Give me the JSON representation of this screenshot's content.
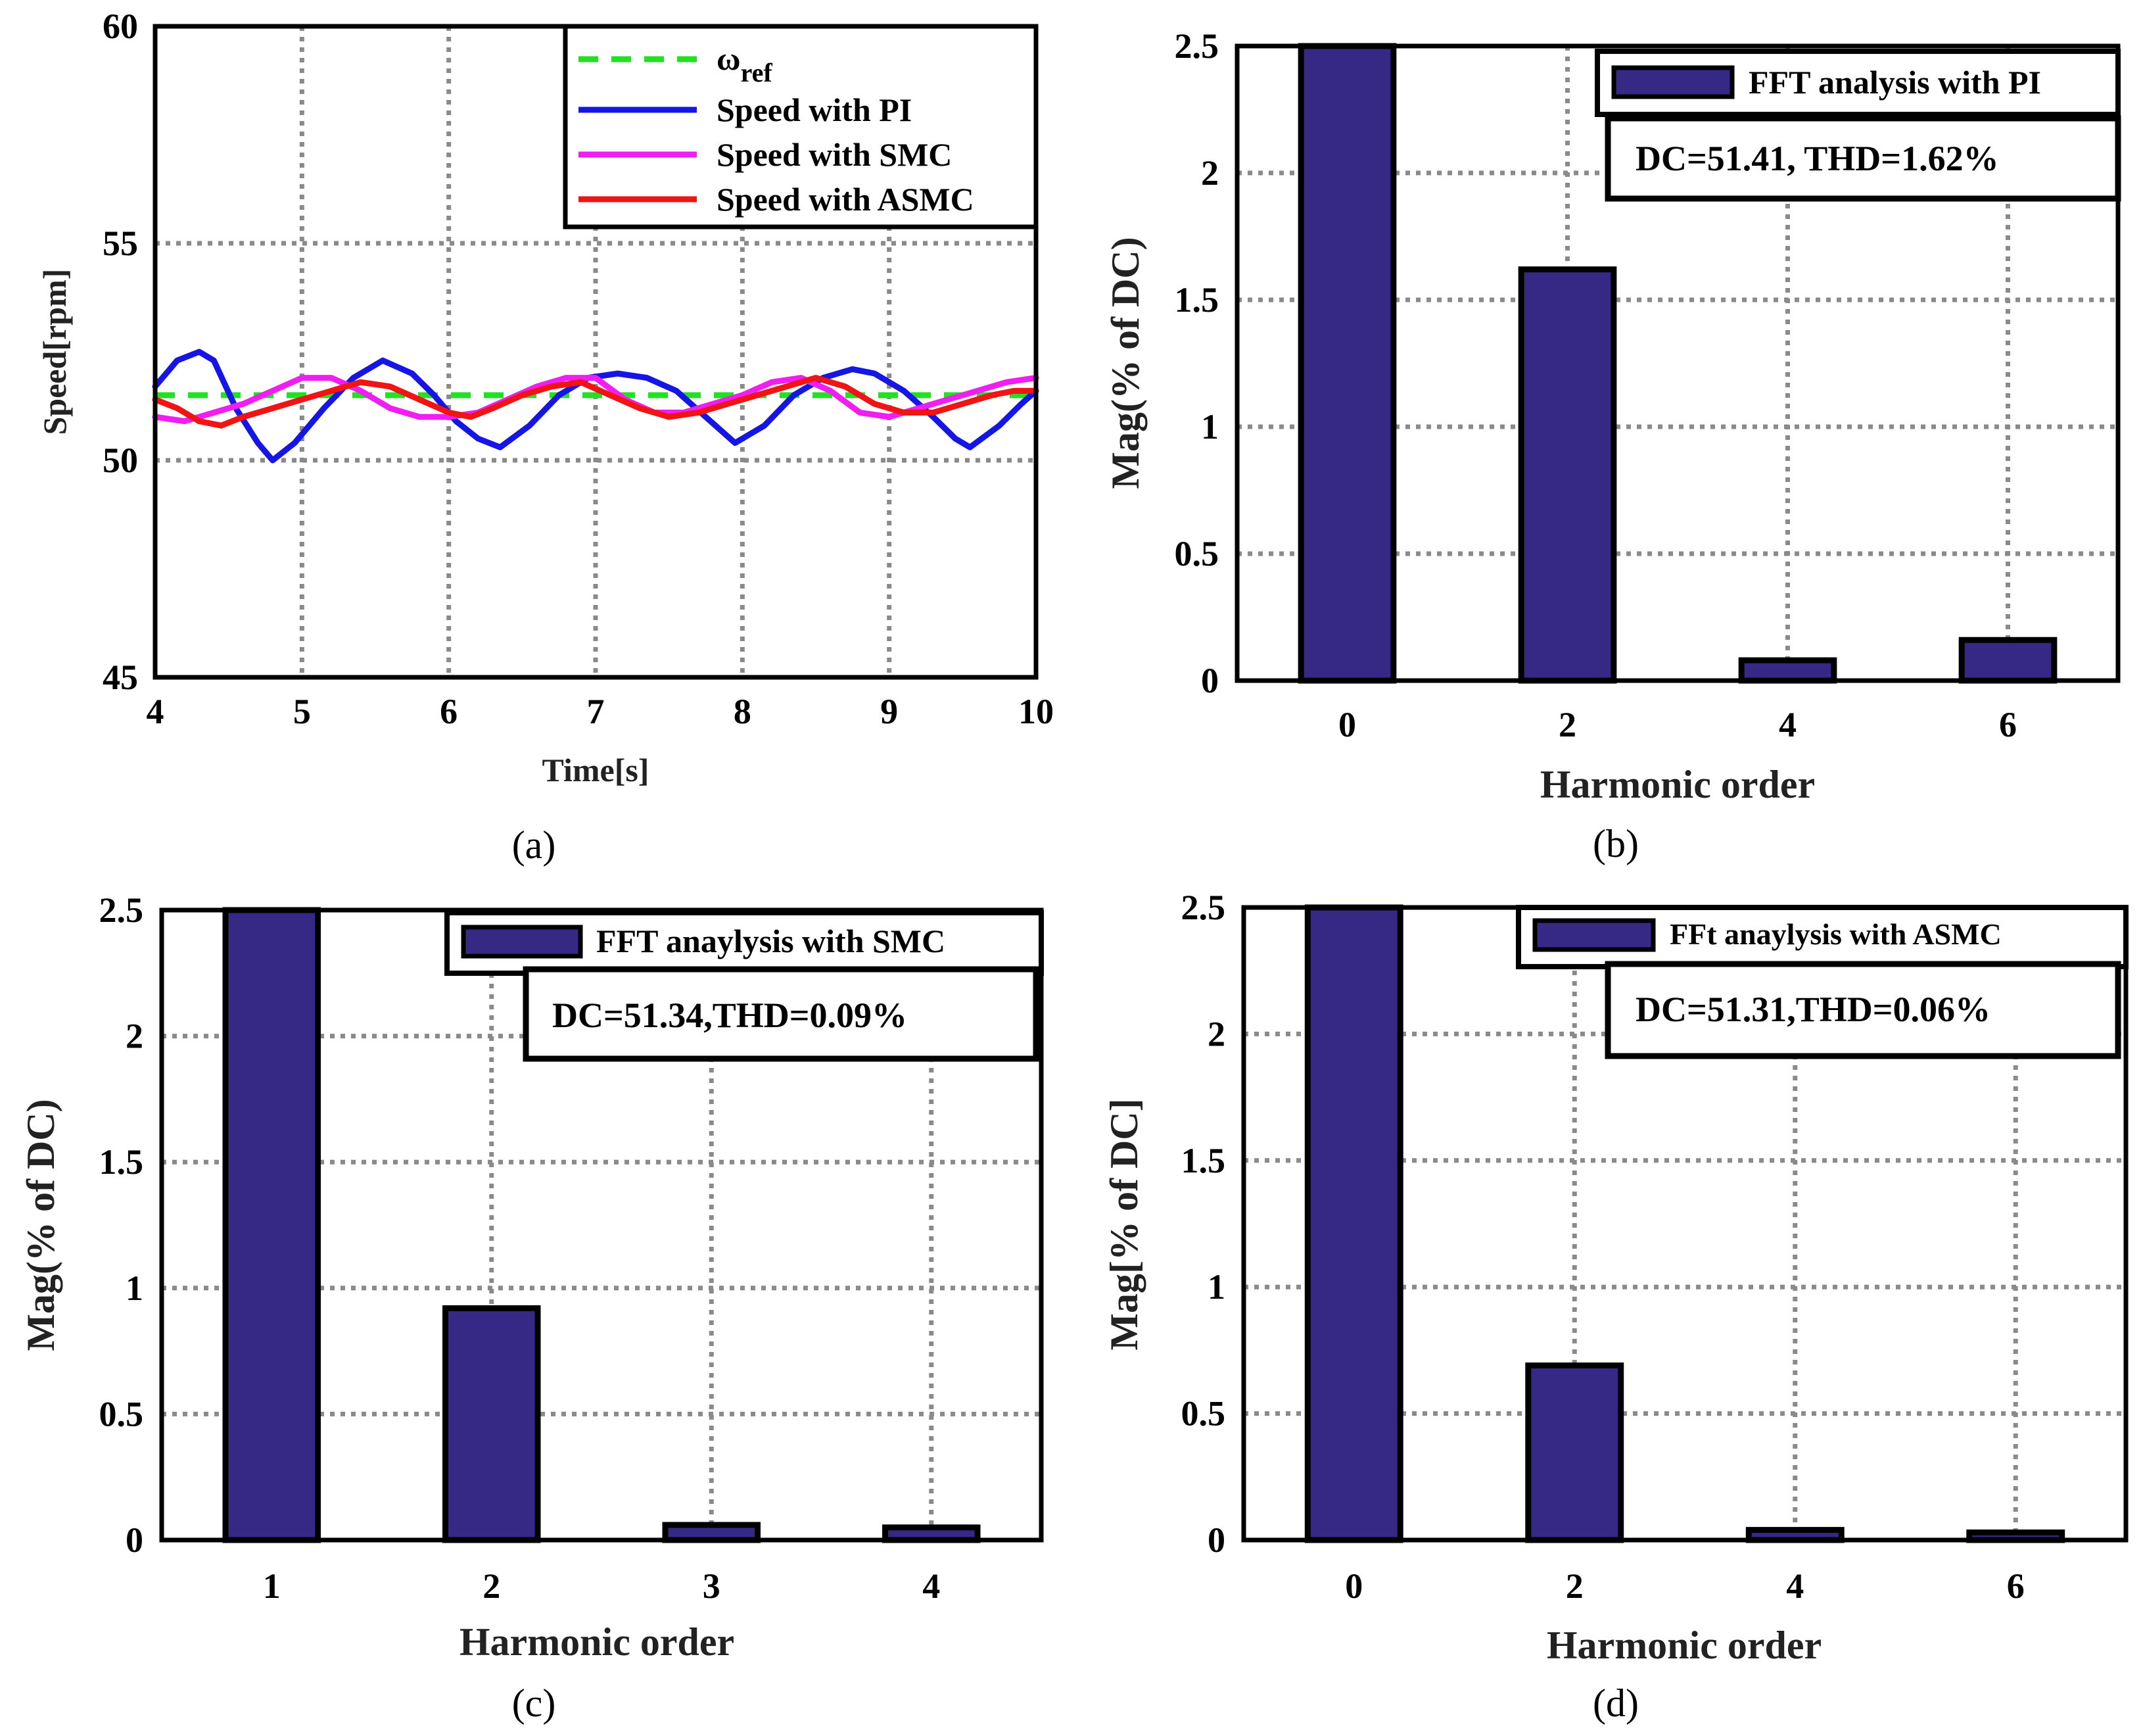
{
  "chart_data": [
    {
      "id": "a",
      "type": "line",
      "caption": "(a)",
      "xlabel": "Time[s]",
      "ylabel": "Speed[rpm]",
      "xlim": [
        4,
        10
      ],
      "ylim": [
        45,
        60
      ],
      "xticks": [
        "4",
        "5",
        "6",
        "7",
        "8",
        "9",
        "10"
      ],
      "yticks": [
        "45",
        "50",
        "55",
        "60"
      ],
      "grid": true,
      "legend_position": "top-right",
      "series": [
        {
          "name": "ω_ref",
          "name_main": "ω",
          "name_sub": "ref",
          "color": "#22e022",
          "style": "dashed",
          "x": [
            4,
            10
          ],
          "y": [
            51.5,
            51.5
          ]
        },
        {
          "name": "Speed with PI",
          "color": "#1515e6",
          "style": "solid",
          "x": [
            4.0,
            4.15,
            4.3,
            4.4,
            4.55,
            4.7,
            4.8,
            4.95,
            5.15,
            5.35,
            5.55,
            5.75,
            5.9,
            6.05,
            6.2,
            6.35,
            6.55,
            6.75,
            6.95,
            7.15,
            7.35,
            7.55,
            7.75,
            7.95,
            8.15,
            8.35,
            8.55,
            8.75,
            8.9,
            9.1,
            9.3,
            9.45,
            9.55,
            9.75,
            9.9,
            10.0
          ],
          "y": [
            51.7,
            52.3,
            52.5,
            52.3,
            51.2,
            50.4,
            50.0,
            50.4,
            51.2,
            51.9,
            52.3,
            52.0,
            51.5,
            50.9,
            50.5,
            50.3,
            50.8,
            51.5,
            51.9,
            52.0,
            51.9,
            51.6,
            51.0,
            50.4,
            50.8,
            51.5,
            51.9,
            52.1,
            52.0,
            51.6,
            51.0,
            50.5,
            50.3,
            50.8,
            51.3,
            51.6
          ]
        },
        {
          "name": "Speed with SMC",
          "color": "#f01ef0",
          "style": "solid",
          "x": [
            4.0,
            4.2,
            4.4,
            4.6,
            4.8,
            5.0,
            5.2,
            5.4,
            5.6,
            5.8,
            6.0,
            6.2,
            6.4,
            6.6,
            6.8,
            7.0,
            7.2,
            7.4,
            7.6,
            7.8,
            8.0,
            8.2,
            8.4,
            8.6,
            8.8,
            9.0,
            9.2,
            9.4,
            9.6,
            9.8,
            10.0
          ],
          "y": [
            51.0,
            50.9,
            51.1,
            51.3,
            51.6,
            51.9,
            51.9,
            51.6,
            51.2,
            51.0,
            51.0,
            51.1,
            51.4,
            51.7,
            51.9,
            51.9,
            51.4,
            51.1,
            51.1,
            51.3,
            51.5,
            51.8,
            51.9,
            51.6,
            51.1,
            51.0,
            51.2,
            51.4,
            51.6,
            51.8,
            51.9
          ]
        },
        {
          "name": "Speed with ASMC",
          "color": "#f01414",
          "style": "solid",
          "x": [
            4.0,
            4.15,
            4.3,
            4.45,
            4.6,
            4.8,
            5.0,
            5.2,
            5.4,
            5.6,
            5.8,
            6.0,
            6.15,
            6.3,
            6.5,
            6.7,
            6.9,
            7.1,
            7.3,
            7.5,
            7.7,
            7.9,
            8.1,
            8.3,
            8.5,
            8.7,
            8.9,
            9.1,
            9.3,
            9.5,
            9.7,
            9.85,
            10.0
          ],
          "y": [
            51.4,
            51.2,
            50.9,
            50.8,
            51.0,
            51.2,
            51.4,
            51.6,
            51.8,
            51.7,
            51.4,
            51.1,
            51.0,
            51.2,
            51.5,
            51.7,
            51.8,
            51.5,
            51.2,
            51.0,
            51.1,
            51.3,
            51.5,
            51.7,
            51.9,
            51.7,
            51.3,
            51.1,
            51.1,
            51.3,
            51.5,
            51.6,
            51.6
          ]
        }
      ]
    },
    {
      "id": "b",
      "type": "bar",
      "caption": "(b)",
      "xlabel": "Harmonic order",
      "ylabel": "Mag(% of DC)",
      "categories": [
        "0",
        "2",
        "4",
        "6"
      ],
      "values": [
        2.5,
        1.62,
        0.08,
        0.16
      ],
      "ylim": [
        0,
        2.5
      ],
      "yticks": [
        "0",
        "0.5",
        "1",
        "1.5",
        "2",
        "2.5"
      ],
      "grid": true,
      "legend": "FFT analysis with PI",
      "annotation": "DC=51.41, THD=1.62%"
    },
    {
      "id": "c",
      "type": "bar",
      "caption": "(c)",
      "xlabel": "Harmonic order",
      "ylabel": "Mag(% of DC)",
      "categories": [
        "1",
        "2",
        "3",
        "4"
      ],
      "values": [
        2.5,
        0.92,
        0.06,
        0.05
      ],
      "ylim": [
        0,
        2.5
      ],
      "yticks": [
        "0",
        "0.5",
        "1",
        "1.5",
        "2",
        "2.5"
      ],
      "grid": true,
      "legend": "FFT anaylysis with SMC",
      "annotation": "DC=51.34,THD=0.09%"
    },
    {
      "id": "d",
      "type": "bar",
      "caption": "(d)",
      "xlabel": "Harmonic order",
      "ylabel": "Mag[% of DC]",
      "categories": [
        "0",
        "2",
        "4",
        "6"
      ],
      "values": [
        2.5,
        0.69,
        0.04,
        0.03
      ],
      "ylim": [
        0,
        2.5
      ],
      "yticks": [
        "0",
        "0.5",
        "1",
        "1.5",
        "2",
        "2.5"
      ],
      "grid": true,
      "legend": "FFt anaylysis with ASMC",
      "annotation": "DC=51.31,THD=0.06%"
    }
  ]
}
